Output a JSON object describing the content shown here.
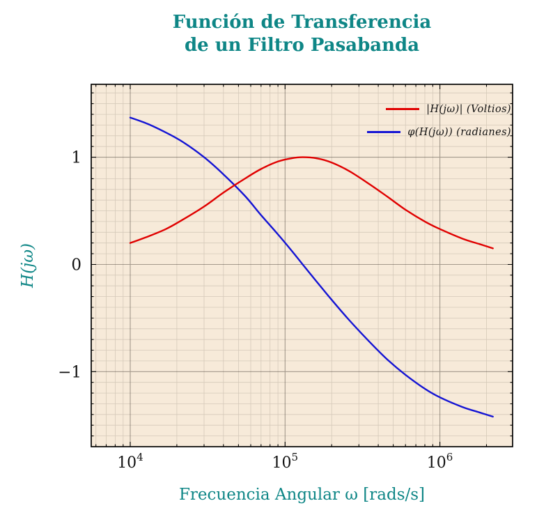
{
  "chart_data": {
    "type": "line",
    "title": "Función de Transferencia de un Filtro Pasabanda",
    "title_line1": "Función de Transferencia",
    "title_line2": "de un Filtro Pasabanda",
    "xlabel": "Frecuencia Angular ω [rads/s]",
    "ylabel": "H(jω)",
    "x_scale": "log",
    "xlim": [
      5600,
      2950000
    ],
    "ylim": [
      -1.7,
      1.68
    ],
    "grid": "both",
    "legend_position": "upper right",
    "x_ticks": [
      {
        "value": 10000,
        "base": "10",
        "exp": "4"
      },
      {
        "value": 100000,
        "base": "10",
        "exp": "5"
      },
      {
        "value": 1000000,
        "base": "10",
        "exp": "6"
      }
    ],
    "y_ticks": [
      {
        "value": 1,
        "label": "1"
      },
      {
        "value": 0,
        "label": "0"
      },
      {
        "value": -1,
        "label": "−1"
      }
    ],
    "x": [
      10000,
      13000,
      17000,
      22000,
      30000,
      40000,
      55000,
      70000,
      90000,
      110000,
      130000,
      160000,
      200000,
      260000,
      350000,
      460000,
      600000,
      800000,
      1000000,
      1400000,
      1800000,
      2200000
    ],
    "series": [
      {
        "name": "|H(jω)| (Voltios)",
        "color": "#e00000",
        "values": [
          0.2,
          0.26,
          0.33,
          0.42,
          0.54,
          0.67,
          0.8,
          0.89,
          0.96,
          0.99,
          1.0,
          0.99,
          0.95,
          0.87,
          0.75,
          0.63,
          0.51,
          0.4,
          0.33,
          0.24,
          0.19,
          0.15
        ]
      },
      {
        "name": "φ(H(jω)) (radianes)",
        "color": "#1414d4",
        "values": [
          1.37,
          1.31,
          1.23,
          1.14,
          1.0,
          0.84,
          0.64,
          0.46,
          0.28,
          0.13,
          0.0,
          -0.16,
          -0.33,
          -0.52,
          -0.72,
          -0.89,
          -1.03,
          -1.16,
          -1.24,
          -1.33,
          -1.38,
          -1.42
        ]
      }
    ],
    "colors": {
      "accent_teal": "#0e8686",
      "plot_background": "#f7ead9",
      "grid_minor": "rgba(95,85,72,0.22)",
      "grid_major": "rgba(60,54,45,0.45)",
      "frame": "#000000",
      "tick_label": "#111111"
    }
  }
}
